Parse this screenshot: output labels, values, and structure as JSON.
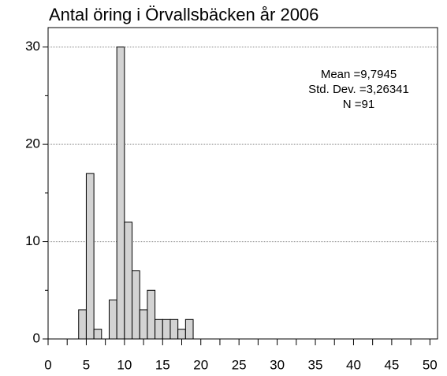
{
  "chart_data": {
    "type": "histogram",
    "title": "Antal öring i Örvallsbäcken år 2006",
    "bins": [
      4,
      5,
      6,
      7,
      8,
      9,
      10,
      11,
      12,
      13,
      14,
      15,
      16,
      17,
      18,
      19
    ],
    "values": [
      3,
      17,
      1,
      0,
      4,
      30,
      12,
      7,
      3,
      5,
      2,
      2,
      2,
      1,
      2
    ],
    "color": "#d3d3d3",
    "xlim": [
      0,
      51
    ],
    "xticks": [
      0,
      5,
      10,
      15,
      20,
      25,
      30,
      35,
      40,
      45,
      50
    ],
    "xminorticks": [
      2.5,
      7.5,
      12.5,
      17.5,
      22.5,
      27.5,
      32.5,
      37.5,
      42.5,
      47.5
    ],
    "ylim": [
      0,
      32
    ],
    "yticks": [
      0,
      10,
      20,
      30
    ],
    "yminorticks": [
      5,
      15,
      25
    ],
    "grid": true,
    "annotations": [
      "Mean =9,7945",
      "Std. Dev. =3,26341",
      "N =91"
    ]
  }
}
